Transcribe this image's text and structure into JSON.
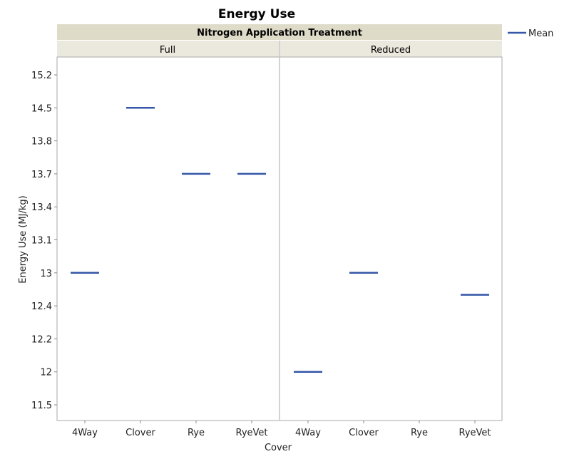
{
  "chart_data": {
    "type": "line",
    "title": "Energy Use",
    "group_title": "Nitrogen Application Treatment",
    "panels": [
      {
        "name": "Full",
        "categories": [
          "4Way",
          "Clover",
          "Rye",
          "RyeVet"
        ],
        "values": [
          13,
          14.5,
          13.7,
          13.7
        ]
      },
      {
        "name": "Reduced",
        "categories": [
          "4Way",
          "Clover",
          "Rye",
          "RyeVet"
        ],
        "values": [
          12,
          13,
          null,
          12.6
        ]
      }
    ],
    "y_tick_labels": [
      "15.2",
      "14.5",
      "13.8",
      "13.7",
      "13.4",
      "13.1",
      "13",
      "12.4",
      "12.2",
      "12",
      "11.5"
    ],
    "xlabel": "Cover",
    "ylabel": "Energy Use (MJ/kg)",
    "legend": {
      "position": "top-right",
      "entries": [
        {
          "name": "Mean",
          "color": "#3557a8"
        }
      ]
    },
    "series_color": "#3557a8",
    "grid": false
  }
}
